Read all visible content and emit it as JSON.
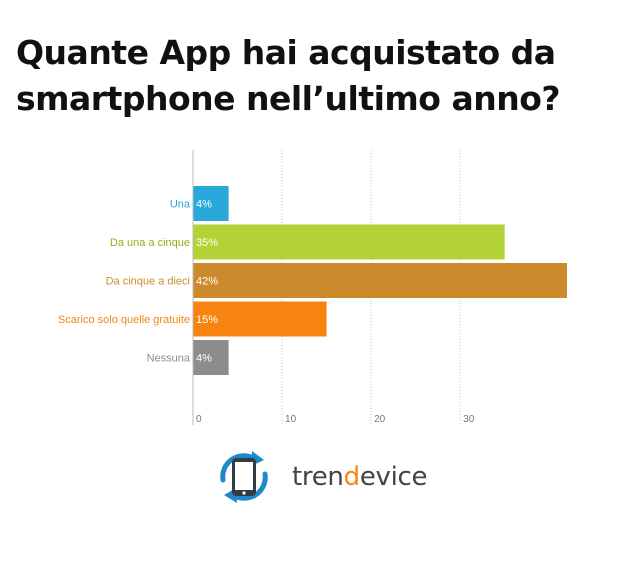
{
  "title": "Quante App hai acquistato da smartphone nell’ultimo anno?",
  "chart_data": {
    "type": "bar",
    "orientation": "horizontal",
    "title": "Quante App hai acquistato da smartphone nell’ultimo anno?",
    "categories": [
      "Una",
      "Da una a cinque",
      "Da cinque a dieci",
      "Scarico solo quelle gratuite",
      "Nessuna"
    ],
    "values": [
      4,
      35,
      42,
      15,
      4
    ],
    "value_labels": [
      "4%",
      "35%",
      "42%",
      "15%",
      "4%"
    ],
    "colors": [
      "#29a8da",
      "#b2d235",
      "#cd8a2d",
      "#f7840f",
      "#8c8c8c"
    ],
    "label_colors": [
      "#29a8da",
      "#8fb020",
      "#cd8a2d",
      "#f7840f",
      "#8c8c8c"
    ],
    "xticks": [
      0,
      10,
      20,
      30
    ],
    "xtick_labels": [
      "0",
      "10",
      "20",
      "30"
    ],
    "xlim": [
      0,
      42
    ],
    "grid": true,
    "xlabel": "",
    "ylabel": ""
  },
  "brand": {
    "name_parts": [
      "tren",
      "d",
      "evice"
    ],
    "logo_icon": "phone-rotate-icon",
    "accent_color": "#f08a16",
    "blue_color": "#1e88c8",
    "dark_color": "#333b44"
  }
}
